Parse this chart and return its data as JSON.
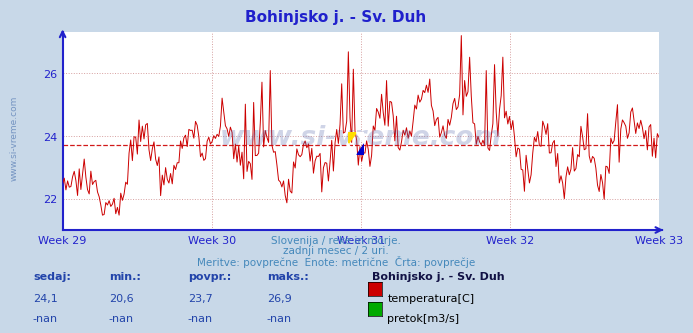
{
  "title": "Bohinjsko j. - Sv. Duh",
  "title_color": "#2020cc",
  "fig_bg_color": "#c8d8e8",
  "plot_bg_color": "#ffffff",
  "line_color": "#cc0000",
  "avg_line_color": "#cc0000",
  "avg_value": 23.7,
  "ymin": 21.0,
  "ymax": 27.3,
  "yticks": [
    22,
    24,
    26
  ],
  "x_labels": [
    "Week 29",
    "Week 30",
    "Week 31",
    "Week 32",
    "Week 33"
  ],
  "grid_color": "#cc8888",
  "axis_color": "#2222cc",
  "tick_label_color": "#2222cc",
  "watermark_text": "www.si-vreme.com",
  "watermark_color": "#5566aa",
  "watermark_alpha": 0.28,
  "subtitle1": "Slovenija / reke in morje.",
  "subtitle2": "zadnji mesec / 2 uri.",
  "subtitle3": "Meritve: povprečne  Enote: metrične  Črta: povprečje",
  "subtitle_color": "#4488bb",
  "legend_title": "Bohinjsko j. - Sv. Duh",
  "legend_title_color": "#111144",
  "stat_labels": [
    "sedaj:",
    "min.:",
    "povpr.:",
    "maks.:"
  ],
  "stat_values_temp": [
    "24,1",
    "20,6",
    "23,7",
    "26,9"
  ],
  "stat_values_flow": [
    "-nan",
    "-nan",
    "-nan",
    "-nan"
  ],
  "stat_color": "#2244aa",
  "temp_color": "#cc0000",
  "flow_color": "#00aa00",
  "temp_label": "temperatura[C]",
  "flow_label": "pretok[m3/s]",
  "sidebar_text": "www.si-vreme.com",
  "sidebar_color": "#6688bb",
  "n_points": 360
}
